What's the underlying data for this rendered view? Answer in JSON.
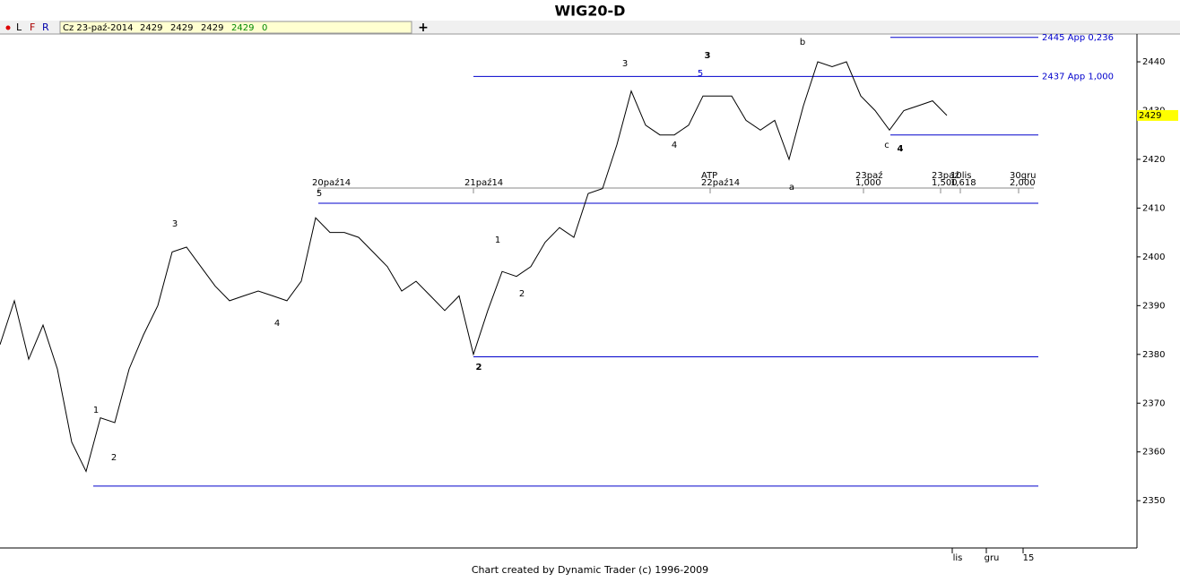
{
  "chart_data": {
    "type": "line",
    "title": "WIG20-D",
    "toolbar": {
      "modes": [
        "L",
        "F",
        "R"
      ],
      "date": "Cz 23-paź-2014",
      "quote": [
        "2429",
        "2429",
        "2429"
      ],
      "last": "2429",
      "change": "0"
    },
    "color": "#000000",
    "values": [
      2382,
      2391,
      2379,
      2386,
      2377,
      2362,
      2356,
      2367,
      2366,
      2377,
      2384,
      2390,
      2401,
      2402,
      2398,
      2394,
      2391,
      2392,
      2393,
      2392,
      2391,
      2395,
      2408,
      2405,
      2405,
      2404,
      2401,
      2398,
      2393,
      2395,
      2392,
      2389,
      2392,
      2380,
      2389,
      2397,
      2396,
      2398,
      2403,
      2406,
      2404,
      2413,
      2414,
      2423,
      2434,
      2427,
      2425,
      2425,
      2427,
      2433,
      2433,
      2433,
      2428,
      2426,
      2428,
      2420,
      2431,
      2440,
      2439,
      2440,
      2433,
      2430,
      2426,
      2430,
      2431,
      2432,
      2429
    ],
    "ylim": [
      2340.3,
      2445.7
    ],
    "yticks": [
      2350,
      2360,
      2370,
      2380,
      2390,
      2400,
      2410,
      2420,
      2430,
      2440
    ],
    "last_price": 2429,
    "levels": [
      {
        "value": 2445,
        "label": "2445 App 0,236"
      },
      {
        "value": 2437,
        "label": "2437 App 1,000"
      },
      2425,
      2411,
      2379.5,
      2353
    ],
    "time_labels": [
      "20paź14",
      "21paź14",
      "ATP",
      "22paź14",
      "23paź",
      "1,000",
      "23paź",
      "1,500",
      "10lis",
      "1,618",
      "30gru",
      "2,000"
    ],
    "wave_labels": [
      "1",
      "2",
      "3",
      "4",
      "5",
      "2",
      "1",
      "2",
      "3",
      "4",
      "5",
      "3",
      "b",
      "a",
      "c",
      "4"
    ],
    "x_axis_labels": [
      "lis",
      "gru",
      "15"
    ],
    "footer": "Chart created by Dynamic Trader  (c) 1996-2009"
  }
}
